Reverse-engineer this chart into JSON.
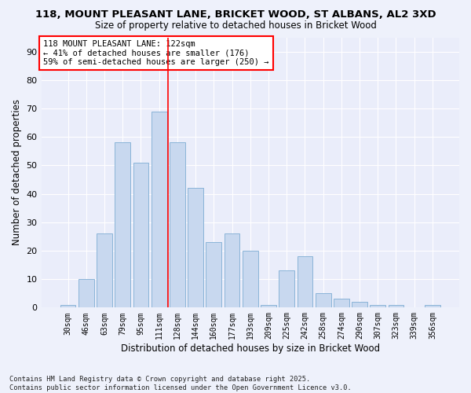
{
  "title1": "118, MOUNT PLEASANT LANE, BRICKET WOOD, ST ALBANS, AL2 3XD",
  "title2": "Size of property relative to detached houses in Bricket Wood",
  "xlabel": "Distribution of detached houses by size in Bricket Wood",
  "ylabel": "Number of detached properties",
  "categories": [
    "30sqm",
    "46sqm",
    "63sqm",
    "79sqm",
    "95sqm",
    "111sqm",
    "128sqm",
    "144sqm",
    "160sqm",
    "177sqm",
    "193sqm",
    "209sqm",
    "225sqm",
    "242sqm",
    "258sqm",
    "274sqm",
    "290sqm",
    "307sqm",
    "323sqm",
    "339sqm",
    "356sqm"
  ],
  "values": [
    1,
    10,
    26,
    58,
    51,
    69,
    58,
    42,
    23,
    26,
    20,
    1,
    13,
    18,
    5,
    3,
    2,
    1,
    1,
    0,
    1
  ],
  "bar_color": "#c8d8ef",
  "bar_edge_color": "#8ab4d8",
  "vline_x": 5.5,
  "vline_color": "red",
  "annotation_text": "118 MOUNT PLEASANT LANE: 122sqm\n← 41% of detached houses are smaller (176)\n59% of semi-detached houses are larger (250) →",
  "annotation_box_color": "white",
  "annotation_box_edge": "red",
  "ylim": [
    0,
    95
  ],
  "yticks": [
    0,
    10,
    20,
    30,
    40,
    50,
    60,
    70,
    80,
    90
  ],
  "footer": "Contains HM Land Registry data © Crown copyright and database right 2025.\nContains public sector information licensed under the Open Government Licence v3.0.",
  "bg_color": "#eef1fb",
  "plot_bg_color": "#eaedfa"
}
